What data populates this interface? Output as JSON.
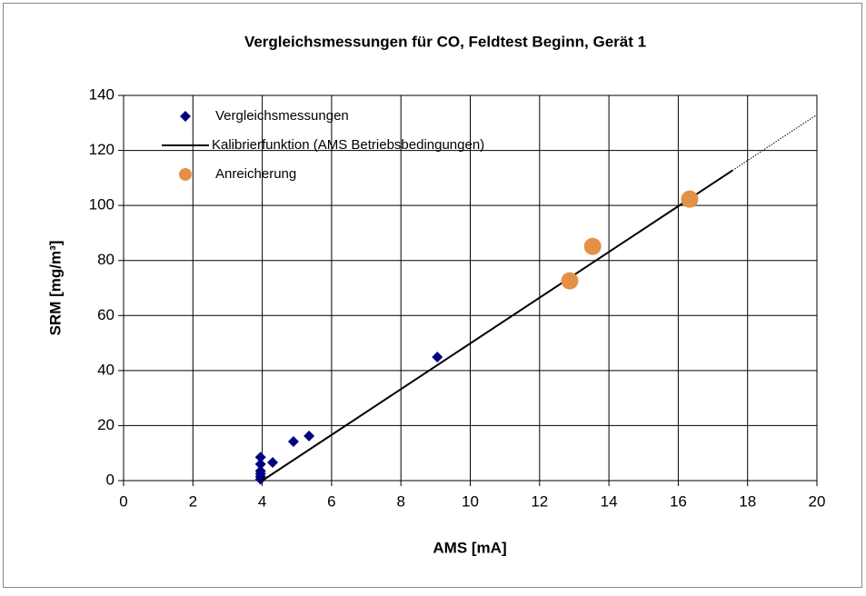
{
  "chart_data": {
    "type": "scatter",
    "title": "Vergleichsmessungen für CO, Feldtest Beginn, Gerät 1",
    "xlabel": "AMS [mA]",
    "ylabel": "SRM [mg/m³]",
    "xlim": [
      0,
      20
    ],
    "xticks": [
      0,
      2,
      4,
      6,
      8,
      10,
      12,
      14,
      16,
      18,
      20
    ],
    "ylim": [
      0,
      140
    ],
    "yticks": [
      0,
      20,
      40,
      60,
      80,
      100,
      120,
      140
    ],
    "grid": true,
    "legend": "upper left",
    "series": [
      {
        "name": "Vergleichsmessungen",
        "kind": "scatter",
        "marker": "diamond",
        "color": "#000080",
        "x": [
          3.95,
          3.95,
          3.95,
          3.95,
          3.95,
          3.95,
          4.3,
          4.9,
          5.35,
          9.05
        ],
        "values": [
          0.5,
          1.5,
          2.5,
          3.5,
          6,
          8.5,
          6.6,
          14.2,
          16.2,
          44.9
        ]
      },
      {
        "name": "Kalibrierfunktion (AMS Betriebsbedingungen)",
        "kind": "line",
        "color": "#000000",
        "x": [
          4,
          17.56
        ],
        "values": [
          0,
          112.7
        ],
        "extrapolation": {
          "x": [
            17.56,
            20
          ],
          "values": [
            112.7,
            133
          ]
        }
      },
      {
        "name": "Anreicherung",
        "kind": "scatter",
        "marker": "circle",
        "color": "#E39146",
        "x": [
          12.87,
          13.53,
          16.33
        ],
        "values": [
          72.6,
          85.1,
          102.3
        ]
      }
    ]
  }
}
